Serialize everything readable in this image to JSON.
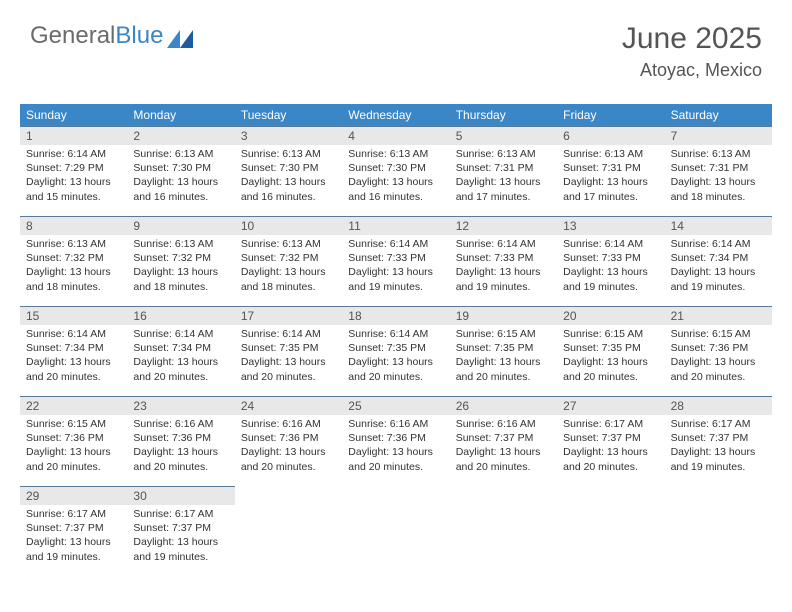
{
  "logo": {
    "text1": "General",
    "text2": "Blue"
  },
  "header": {
    "month": "June 2025",
    "location": "Atoyac, Mexico"
  },
  "colors": {
    "header_bg": "#3b86c7",
    "header_text": "#ffffff",
    "daynum_bg": "#e8e8e8",
    "border": "#5a7a9a",
    "title_color": "#555555",
    "body_text": "#333333"
  },
  "day_names": [
    "Sunday",
    "Monday",
    "Tuesday",
    "Wednesday",
    "Thursday",
    "Friday",
    "Saturday"
  ],
  "days": [
    {
      "num": "1",
      "sunrise": "6:14 AM",
      "sunset": "7:29 PM",
      "daylight": "13 hours and 15 minutes."
    },
    {
      "num": "2",
      "sunrise": "6:13 AM",
      "sunset": "7:30 PM",
      "daylight": "13 hours and 16 minutes."
    },
    {
      "num": "3",
      "sunrise": "6:13 AM",
      "sunset": "7:30 PM",
      "daylight": "13 hours and 16 minutes."
    },
    {
      "num": "4",
      "sunrise": "6:13 AM",
      "sunset": "7:30 PM",
      "daylight": "13 hours and 16 minutes."
    },
    {
      "num": "5",
      "sunrise": "6:13 AM",
      "sunset": "7:31 PM",
      "daylight": "13 hours and 17 minutes."
    },
    {
      "num": "6",
      "sunrise": "6:13 AM",
      "sunset": "7:31 PM",
      "daylight": "13 hours and 17 minutes."
    },
    {
      "num": "7",
      "sunrise": "6:13 AM",
      "sunset": "7:31 PM",
      "daylight": "13 hours and 18 minutes."
    },
    {
      "num": "8",
      "sunrise": "6:13 AM",
      "sunset": "7:32 PM",
      "daylight": "13 hours and 18 minutes."
    },
    {
      "num": "9",
      "sunrise": "6:13 AM",
      "sunset": "7:32 PM",
      "daylight": "13 hours and 18 minutes."
    },
    {
      "num": "10",
      "sunrise": "6:13 AM",
      "sunset": "7:32 PM",
      "daylight": "13 hours and 18 minutes."
    },
    {
      "num": "11",
      "sunrise": "6:14 AM",
      "sunset": "7:33 PM",
      "daylight": "13 hours and 19 minutes."
    },
    {
      "num": "12",
      "sunrise": "6:14 AM",
      "sunset": "7:33 PM",
      "daylight": "13 hours and 19 minutes."
    },
    {
      "num": "13",
      "sunrise": "6:14 AM",
      "sunset": "7:33 PM",
      "daylight": "13 hours and 19 minutes."
    },
    {
      "num": "14",
      "sunrise": "6:14 AM",
      "sunset": "7:34 PM",
      "daylight": "13 hours and 19 minutes."
    },
    {
      "num": "15",
      "sunrise": "6:14 AM",
      "sunset": "7:34 PM",
      "daylight": "13 hours and 20 minutes."
    },
    {
      "num": "16",
      "sunrise": "6:14 AM",
      "sunset": "7:34 PM",
      "daylight": "13 hours and 20 minutes."
    },
    {
      "num": "17",
      "sunrise": "6:14 AM",
      "sunset": "7:35 PM",
      "daylight": "13 hours and 20 minutes."
    },
    {
      "num": "18",
      "sunrise": "6:14 AM",
      "sunset": "7:35 PM",
      "daylight": "13 hours and 20 minutes."
    },
    {
      "num": "19",
      "sunrise": "6:15 AM",
      "sunset": "7:35 PM",
      "daylight": "13 hours and 20 minutes."
    },
    {
      "num": "20",
      "sunrise": "6:15 AM",
      "sunset": "7:35 PM",
      "daylight": "13 hours and 20 minutes."
    },
    {
      "num": "21",
      "sunrise": "6:15 AM",
      "sunset": "7:36 PM",
      "daylight": "13 hours and 20 minutes."
    },
    {
      "num": "22",
      "sunrise": "6:15 AM",
      "sunset": "7:36 PM",
      "daylight": "13 hours and 20 minutes."
    },
    {
      "num": "23",
      "sunrise": "6:16 AM",
      "sunset": "7:36 PM",
      "daylight": "13 hours and 20 minutes."
    },
    {
      "num": "24",
      "sunrise": "6:16 AM",
      "sunset": "7:36 PM",
      "daylight": "13 hours and 20 minutes."
    },
    {
      "num": "25",
      "sunrise": "6:16 AM",
      "sunset": "7:36 PM",
      "daylight": "13 hours and 20 minutes."
    },
    {
      "num": "26",
      "sunrise": "6:16 AM",
      "sunset": "7:37 PM",
      "daylight": "13 hours and 20 minutes."
    },
    {
      "num": "27",
      "sunrise": "6:17 AM",
      "sunset": "7:37 PM",
      "daylight": "13 hours and 20 minutes."
    },
    {
      "num": "28",
      "sunrise": "6:17 AM",
      "sunset": "7:37 PM",
      "daylight": "13 hours and 19 minutes."
    },
    {
      "num": "29",
      "sunrise": "6:17 AM",
      "sunset": "7:37 PM",
      "daylight": "13 hours and 19 minutes."
    },
    {
      "num": "30",
      "sunrise": "6:17 AM",
      "sunset": "7:37 PM",
      "daylight": "13 hours and 19 minutes."
    }
  ],
  "labels": {
    "sunrise": "Sunrise:",
    "sunset": "Sunset:",
    "daylight": "Daylight:"
  }
}
